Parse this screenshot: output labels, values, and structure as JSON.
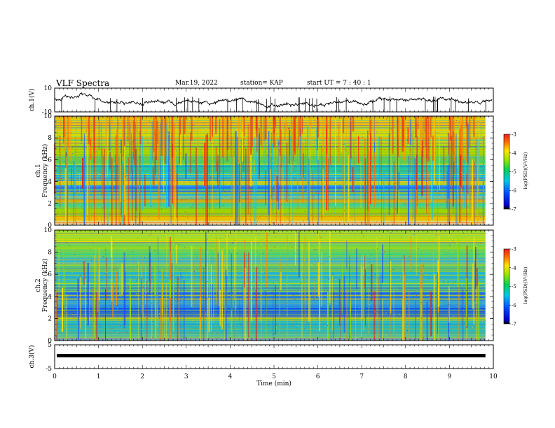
{
  "header": {
    "title": "VLF Spectra",
    "date": "Mar.19, 2022",
    "station": "station= KAP",
    "start": "start  UT =   7 : 40 : 1"
  },
  "chart_data": [
    {
      "type": "line",
      "ylabel": "ch.1(V)",
      "ylim": [
        -10,
        10
      ],
      "yticks": [
        "10",
        "-10"
      ]
    },
    {
      "type": "heatmap",
      "ylabel_top": "ch.1",
      "ylabel_bottom": "Frequency (kHz)",
      "ylim": [
        0,
        10
      ],
      "yticks": [
        "0",
        "2",
        "4",
        "6",
        "8",
        "10"
      ],
      "colorbar": {
        "label": "log(PSD)(V²/Hz)",
        "range": [
          -7,
          -3
        ],
        "ticks": [
          "-3",
          "-4",
          "-5",
          "-6",
          "-7"
        ]
      }
    },
    {
      "type": "heatmap",
      "ylabel_top": "ch.2",
      "ylabel_bottom": "Frequency (kHz)",
      "ylim": [
        0,
        10
      ],
      "yticks": [
        "0",
        "2",
        "4",
        "6",
        "8",
        "10"
      ],
      "colorbar": {
        "label": "log(PSD)(V²/Hz)",
        "range": [
          -7,
          -3
        ],
        "ticks": [
          "-3",
          "-4",
          "-5",
          "-6",
          "-7"
        ]
      }
    },
    {
      "type": "line",
      "ylabel": "ch.3(V)",
      "ylim": [
        -5,
        5
      ],
      "yticks": [
        "5",
        "-5"
      ]
    }
  ],
  "xaxis": {
    "label": "Time (min)",
    "xlim": [
      0,
      10
    ],
    "ticks": [
      "0",
      "1",
      "2",
      "3",
      "4",
      "5",
      "6",
      "7",
      "8",
      "9",
      "10"
    ]
  }
}
